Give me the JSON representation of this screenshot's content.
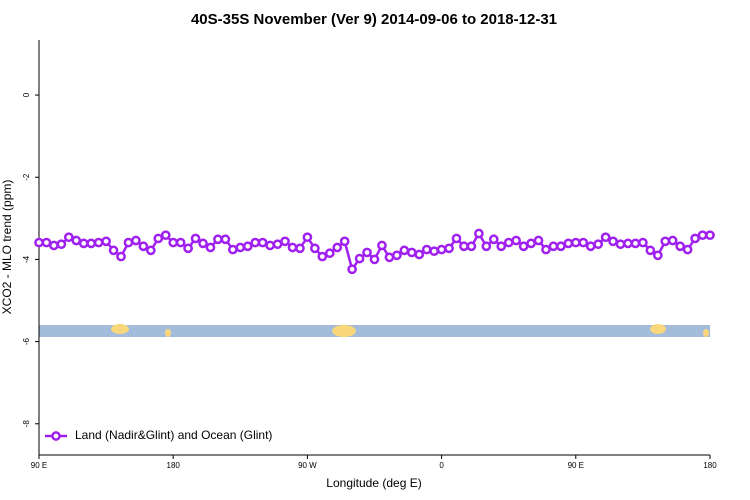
{
  "chart_data": {
    "type": "line",
    "title": "40S-35S November (Ver 9)   2014-09-06 to 2018-12-31",
    "xlabel": "Longitude (deg E)",
    "ylabel": "XCO2 - MLO trend (ppm)",
    "x": [
      90,
      95,
      100,
      105,
      110,
      115,
      120,
      125,
      130,
      135,
      140,
      145,
      150,
      155,
      160,
      165,
      170,
      175,
      180,
      185,
      190,
      195,
      200,
      205,
      210,
      215,
      220,
      225,
      230,
      235,
      240,
      245,
      250,
      255,
      260,
      265,
      270,
      275,
      280,
      285,
      290,
      295,
      300,
      305,
      310,
      315,
      320,
      325,
      330,
      335,
      340,
      345,
      350,
      355,
      360,
      365,
      370,
      375,
      380,
      385,
      390,
      395,
      400,
      405,
      410,
      415,
      420,
      425,
      430,
      435,
      440,
      445,
      450,
      455,
      460,
      465,
      470,
      475,
      480,
      485,
      490,
      495,
      500,
      505,
      510,
      515,
      520,
      525,
      530,
      535,
      540
    ],
    "series": [
      {
        "name": "Land (Nadir&Glint) and Ocean (Glint)",
        "color": "#a020f0",
        "values": [
          -3.59,
          -3.59,
          -3.66,
          -3.63,
          -3.46,
          -3.54,
          -3.61,
          -3.61,
          -3.59,
          -3.56,
          -3.78,
          -3.93,
          -3.59,
          -3.54,
          -3.68,
          -3.78,
          -3.49,
          -3.41,
          -3.59,
          -3.59,
          -3.73,
          -3.49,
          -3.61,
          -3.71,
          -3.51,
          -3.51,
          -3.76,
          -3.71,
          -3.68,
          -3.59,
          -3.59,
          -3.66,
          -3.63,
          -3.56,
          -3.71,
          -3.73,
          -3.46,
          -3.73,
          -3.93,
          -3.85,
          -3.71,
          -3.56,
          -4.24,
          -3.98,
          -3.83,
          -4.0,
          -3.66,
          -3.95,
          -3.9,
          -3.78,
          -3.83,
          -3.88,
          -3.76,
          -3.8,
          -3.76,
          -3.73,
          -3.49,
          -3.68,
          -3.68,
          -3.37,
          -3.68,
          -3.51,
          -3.68,
          -3.59,
          -3.54,
          -3.68,
          -3.61,
          -3.54,
          -3.76,
          -3.68,
          -3.68,
          -3.61,
          -3.59,
          -3.59,
          -3.68,
          -3.63,
          -3.46,
          -3.56,
          -3.63,
          -3.61,
          -3.61,
          -3.59,
          -3.78,
          -3.9,
          -3.56,
          -3.54,
          -3.68,
          -3.76,
          -3.49,
          -3.41,
          -3.41
        ]
      }
    ],
    "xlim": [
      90,
      540
    ],
    "xticks": [
      {
        "value": 90,
        "label": "90 E"
      },
      180,
      {
        "value": 270,
        "label": "90 W"
      },
      {
        "value": 360,
        "label": "0"
      },
      {
        "value": 450,
        "label": "90 E"
      },
      {
        "value": 540,
        "label": "180"
      }
    ],
    "ylim": [
      -8.76,
      1.34
    ],
    "yticks": [
      0,
      -2,
      -4,
      -6,
      -8
    ],
    "legend": "bottom-left"
  }
}
